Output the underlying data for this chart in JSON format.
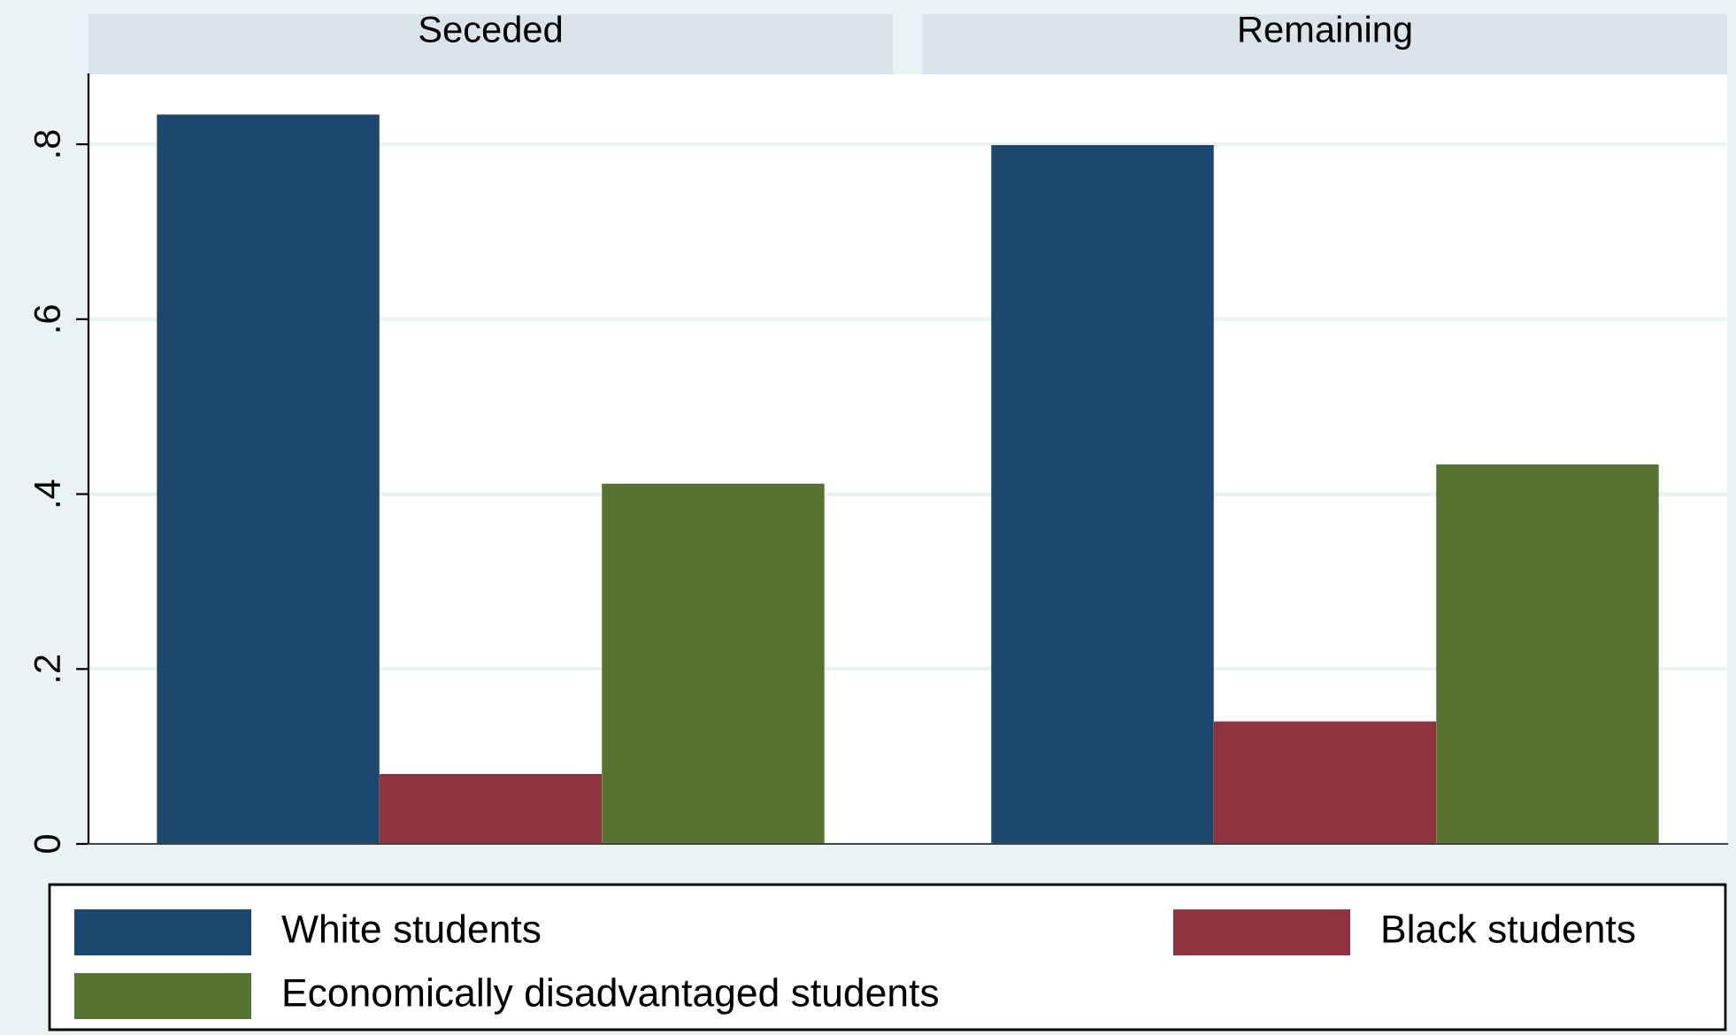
{
  "chart_data": {
    "type": "bar",
    "categories": [
      "Seceded",
      "Remaining"
    ],
    "series": [
      {
        "name": "White students",
        "color": "#1c476f",
        "values": [
          0.834,
          0.799
        ]
      },
      {
        "name": "Black students",
        "color": "#8f343e",
        "values": [
          0.08,
          0.14
        ]
      },
      {
        "name": "Economically disadvantaged students",
        "color": "#56742f",
        "values": [
          0.412,
          0.434
        ]
      }
    ],
    "ylim": [
      0,
      0.88
    ],
    "yticks": [
      {
        "value": 0,
        "label": "0"
      },
      {
        "value": 0.2,
        "label": ".2"
      },
      {
        "value": 0.4,
        "label": ".4"
      },
      {
        "value": 0.6,
        "label": ".6"
      },
      {
        "value": 0.8,
        "label": ".8"
      }
    ],
    "grid": "y",
    "legend": "bottom"
  }
}
